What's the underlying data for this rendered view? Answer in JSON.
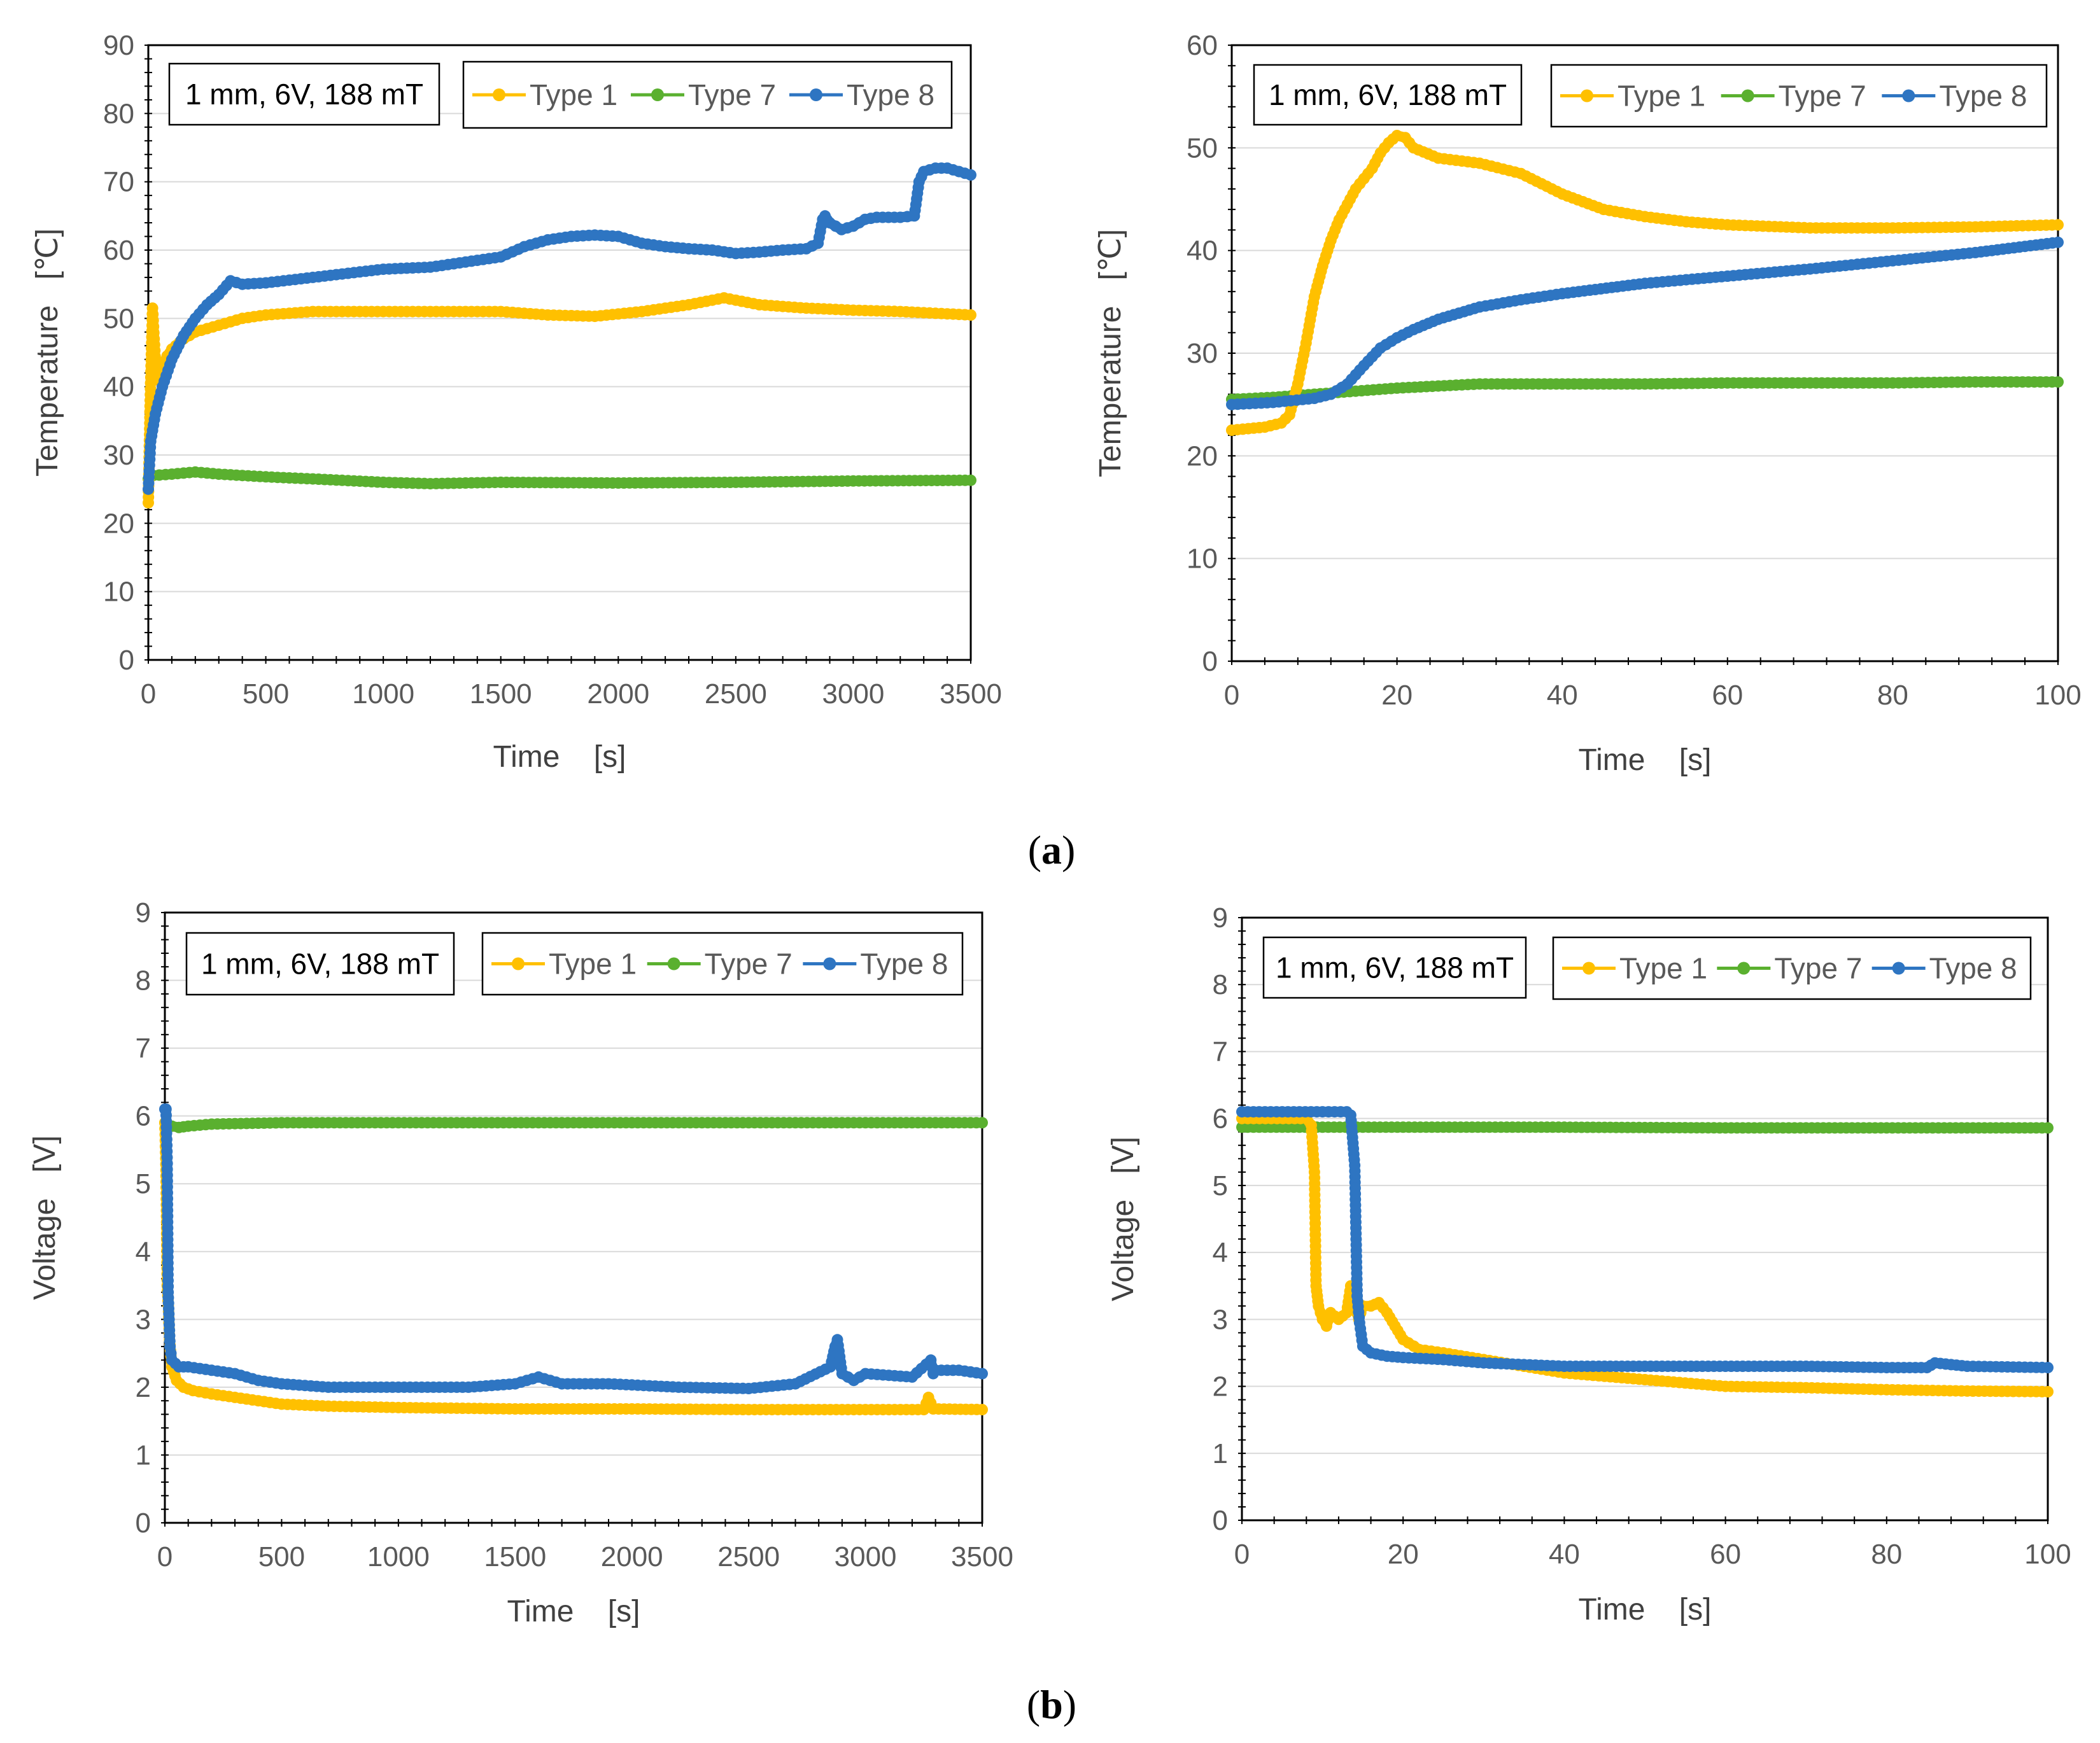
{
  "figure": {
    "caption_a": "(a)",
    "caption_b": "(b)",
    "caption_a_open": "(",
    "caption_a_letter": "a",
    "caption_a_close": ")",
    "caption_b_open": "(",
    "caption_b_letter": "b",
    "caption_b_close": ")"
  },
  "chart_data": [
    {
      "id": "temp_long",
      "type": "line",
      "ylabel": "Temperature   [℃]",
      "xlabel": "Time    [s]",
      "annotation": "1 mm, 6V, 188 mT",
      "xlim": [
        0,
        3500
      ],
      "ylim": [
        0,
        90
      ],
      "xticks": [
        0,
        500,
        1000,
        1500,
        2000,
        2500,
        3000,
        3500
      ],
      "yticks": [
        0,
        10,
        20,
        30,
        40,
        50,
        60,
        70,
        80,
        90
      ],
      "grid": true,
      "legend": "top-right",
      "series": [
        {
          "name": "Type 1",
          "color": "#FFC000",
          "x": [
            0,
            8,
            18,
            25,
            35,
            45,
            60,
            80,
            100,
            150,
            200,
            250,
            300,
            400,
            500,
            700,
            1000,
            1200,
            1500,
            1700,
            1900,
            2100,
            2300,
            2450,
            2600,
            2800,
            3000,
            3200,
            3500
          ],
          "y": [
            23,
            38,
            51.5,
            47,
            41,
            42,
            43,
            44.5,
            45.5,
            47,
            48,
            48.5,
            49,
            50,
            50.5,
            51,
            51,
            51,
            51,
            50.5,
            50.3,
            51,
            52,
            53,
            52,
            51.5,
            51.2,
            51,
            50.5
          ]
        },
        {
          "name": "Type 7",
          "color": "#5AB02F",
          "x": [
            0,
            20,
            100,
            200,
            300,
            500,
            700,
            1000,
            1200,
            1500,
            2000,
            2500,
            3000,
            3500
          ],
          "y": [
            26.5,
            27,
            27.2,
            27.5,
            27.2,
            26.8,
            26.5,
            26,
            25.8,
            26,
            25.9,
            26,
            26.2,
            26.3
          ]
        },
        {
          "name": "Type 8",
          "color": "#2E75C2",
          "x": [
            0,
            10,
            30,
            60,
            100,
            150,
            200,
            250,
            300,
            350,
            400,
            500,
            700,
            1000,
            1200,
            1400,
            1500,
            1600,
            1700,
            1800,
            1900,
            2000,
            2100,
            2200,
            2300,
            2400,
            2500,
            2600,
            2700,
            2800,
            2850,
            2870,
            2880,
            2900,
            2950,
            3000,
            3050,
            3100,
            3200,
            3260,
            3280,
            3300,
            3350,
            3400,
            3450,
            3500
          ],
          "y": [
            25,
            32,
            36,
            40,
            44,
            47.5,
            50,
            52,
            53.5,
            55.5,
            55,
            55.2,
            56,
            57.2,
            57.5,
            58.5,
            59,
            60.5,
            61.5,
            62,
            62.2,
            62,
            61,
            60.5,
            60.2,
            60,
            59.5,
            59.7,
            60,
            60.2,
            61,
            64.5,
            65,
            64,
            63,
            63.5,
            64.5,
            64.8,
            64.8,
            65,
            70,
            71.5,
            72,
            72,
            71.5,
            71
          ]
        }
      ]
    },
    {
      "id": "temp_short",
      "type": "line",
      "ylabel": "Temperature   [℃]",
      "xlabel": "Time    [s]",
      "annotation": "1 mm, 6V, 188 mT",
      "xlim": [
        0,
        100
      ],
      "ylim": [
        0,
        60
      ],
      "xticks": [
        0,
        20,
        40,
        60,
        80,
        100
      ],
      "yticks": [
        0,
        10,
        20,
        30,
        40,
        50,
        60
      ],
      "grid": true,
      "legend": "top-right",
      "series": [
        {
          "name": "Type 1",
          "color": "#FFC000",
          "x": [
            0,
            4,
            6,
            7,
            8,
            9,
            10,
            11,
            12,
            13,
            14,
            15,
            16,
            17,
            18,
            19,
            20,
            21,
            22,
            25,
            30,
            35,
            40,
            45,
            50,
            55,
            60,
            70,
            80,
            90,
            100
          ],
          "y": [
            22.5,
            22.8,
            23.2,
            24,
            27,
            31,
            35.5,
            38.5,
            41,
            43,
            44.5,
            46,
            47,
            48,
            49.5,
            50.5,
            51.2,
            51,
            50,
            49,
            48.5,
            47.5,
            45.5,
            44,
            43.3,
            42.8,
            42.5,
            42.2,
            42.2,
            42.3,
            42.5
          ]
        },
        {
          "name": "Type 7",
          "color": "#5AB02F",
          "x": [
            0,
            5,
            10,
            15,
            20,
            25,
            30,
            40,
            50,
            60,
            70,
            80,
            90,
            100
          ],
          "y": [
            25.5,
            25.7,
            26,
            26.3,
            26.6,
            26.8,
            27,
            27,
            27,
            27.1,
            27.1,
            27.1,
            27.2,
            27.2
          ]
        },
        {
          "name": "Type 8",
          "color": "#2E75C2",
          "x": [
            0,
            5,
            10,
            12,
            14,
            16,
            18,
            20,
            22,
            25,
            30,
            35,
            40,
            50,
            60,
            70,
            80,
            90,
            100
          ],
          "y": [
            25,
            25.2,
            25.6,
            26,
            27,
            28.8,
            30.5,
            31.5,
            32.3,
            33.3,
            34.5,
            35.2,
            35.8,
            36.8,
            37.5,
            38.2,
            39,
            39.8,
            40.8
          ]
        }
      ]
    },
    {
      "id": "volt_long",
      "type": "line",
      "ylabel": "Voltage   [V]",
      "xlabel": "Time    [s]",
      "annotation": "1 mm, 6V, 188 mT",
      "xlim": [
        0,
        3500
      ],
      "ylim": [
        0,
        9
      ],
      "xticks": [
        0,
        500,
        1000,
        1500,
        2000,
        2500,
        3000,
        3500
      ],
      "yticks": [
        0,
        1,
        2,
        3,
        4,
        5,
        6,
        7,
        8,
        9
      ],
      "grid": true,
      "legend": "top-right",
      "series": [
        {
          "name": "Type 1",
          "color": "#FFC000",
          "x": [
            0,
            5,
            10,
            15,
            20,
            30,
            50,
            80,
            120,
            200,
            300,
            500,
            700,
            1000,
            1500,
            2000,
            2500,
            3000,
            3250,
            3270,
            3290,
            3500
          ],
          "y": [
            5.9,
            5.2,
            3.5,
            3.2,
            2.7,
            2.3,
            2.1,
            2.0,
            1.95,
            1.9,
            1.85,
            1.75,
            1.72,
            1.7,
            1.68,
            1.68,
            1.67,
            1.67,
            1.67,
            1.85,
            1.68,
            1.67
          ]
        },
        {
          "name": "Type 7",
          "color": "#5AB02F",
          "x": [
            0,
            10,
            30,
            60,
            100,
            200,
            500,
            1000,
            1500,
            2000,
            2500,
            3000,
            3500
          ],
          "y": [
            5.9,
            5.88,
            5.85,
            5.83,
            5.85,
            5.88,
            5.9,
            5.9,
            5.9,
            5.9,
            5.9,
            5.9,
            5.9
          ]
        },
        {
          "name": "Type 8",
          "color": "#2E75C2",
          "x": [
            0,
            5,
            10,
            14,
            18,
            22,
            30,
            60,
            100,
            200,
            300,
            400,
            500,
            700,
            1000,
            1300,
            1500,
            1600,
            1700,
            1900,
            2200,
            2500,
            2700,
            2850,
            2870,
            2880,
            2900,
            2950,
            3000,
            3200,
            3280,
            3290,
            3300,
            3400,
            3500
          ],
          "y": [
            6.1,
            6.1,
            5.3,
            3.4,
            3.0,
            2.6,
            2.4,
            2.3,
            2.3,
            2.25,
            2.2,
            2.1,
            2.05,
            2.0,
            2.0,
            2.0,
            2.05,
            2.15,
            2.05,
            2.05,
            2.0,
            1.98,
            2.05,
            2.3,
            2.6,
            2.7,
            2.2,
            2.1,
            2.2,
            2.15,
            2.4,
            2.2,
            2.25,
            2.25,
            2.2
          ]
        }
      ]
    },
    {
      "id": "volt_short",
      "type": "line",
      "ylabel": "Voltage   [V]",
      "xlabel": "Time    [s]",
      "annotation": "1 mm, 6V, 188 mT",
      "xlim": [
        0,
        100
      ],
      "ylim": [
        0,
        9
      ],
      "xticks": [
        0,
        20,
        40,
        60,
        80,
        100
      ],
      "yticks": [
        0,
        1,
        2,
        3,
        4,
        5,
        6,
        7,
        8,
        9
      ],
      "grid": true,
      "legend": "top-right",
      "series": [
        {
          "name": "Type 1",
          "color": "#FFC000",
          "x": [
            0,
            8,
            8.6,
            9,
            9.2,
            9.5,
            10,
            10.5,
            11,
            12,
            13,
            13.5,
            14,
            14.5,
            15,
            16,
            17,
            18,
            19,
            20,
            22,
            25,
            30,
            35,
            40,
            50,
            60,
            70,
            80,
            90,
            100
          ],
          "y": [
            6.0,
            6.0,
            5.9,
            5.2,
            3.5,
            3.2,
            3.0,
            2.9,
            3.1,
            3.0,
            3.1,
            3.5,
            3.2,
            3.0,
            3.2,
            3.2,
            3.25,
            3.1,
            2.9,
            2.7,
            2.55,
            2.5,
            2.4,
            2.3,
            2.2,
            2.1,
            2.0,
            1.98,
            1.95,
            1.93,
            1.92
          ]
        },
        {
          "name": "Type 7",
          "color": "#5AB02F",
          "x": [
            0,
            20,
            40,
            60,
            80,
            100
          ],
          "y": [
            5.87,
            5.87,
            5.87,
            5.86,
            5.86,
            5.86
          ]
        },
        {
          "name": "Type 8",
          "color": "#2E75C2",
          "x": [
            0,
            5,
            10,
            13,
            13.5,
            14,
            14.3,
            14.6,
            15,
            16,
            18,
            20,
            25,
            30,
            40,
            50,
            60,
            70,
            80,
            85,
            86,
            90,
            100
          ],
          "y": [
            6.1,
            6.1,
            6.1,
            6.1,
            6.05,
            5.3,
            3.35,
            2.95,
            2.6,
            2.5,
            2.45,
            2.43,
            2.4,
            2.35,
            2.3,
            2.3,
            2.3,
            2.3,
            2.28,
            2.28,
            2.35,
            2.3,
            2.28
          ]
        }
      ]
    }
  ]
}
